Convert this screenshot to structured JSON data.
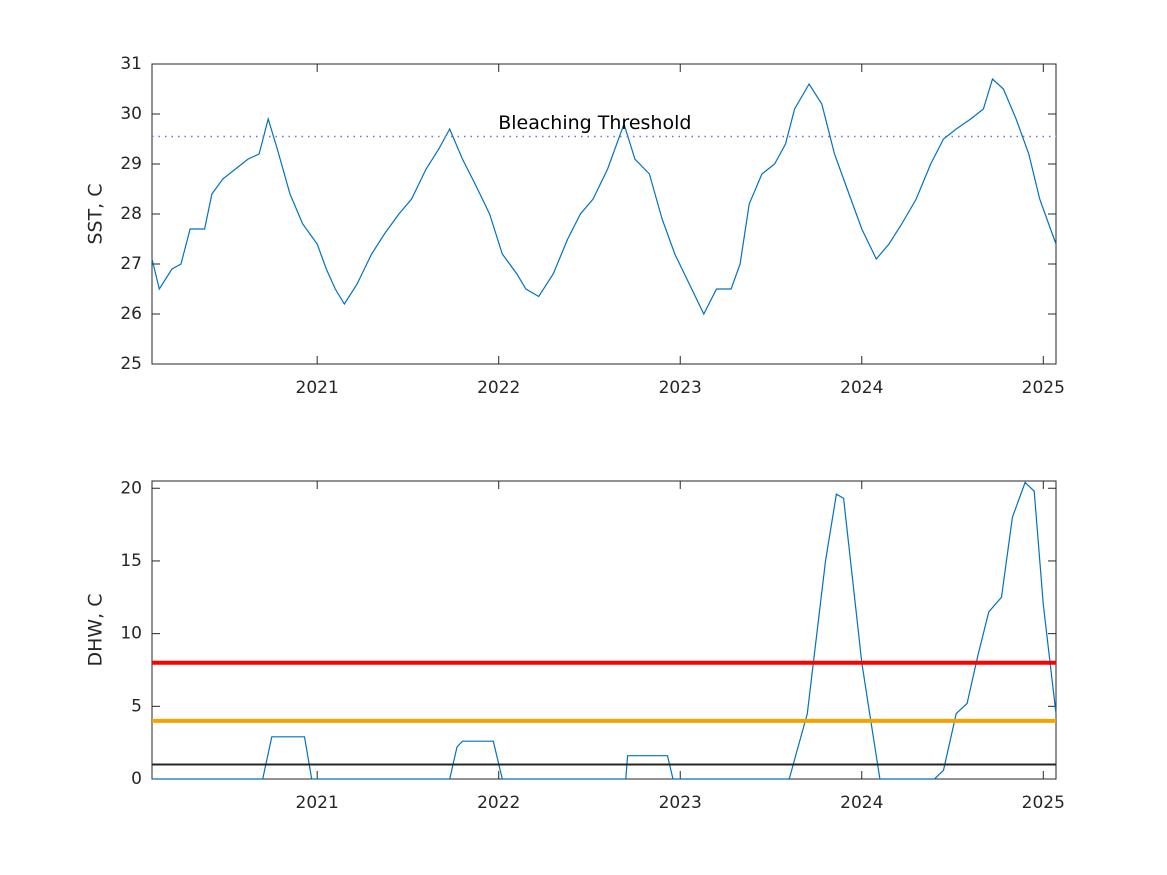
{
  "chart_data": [
    {
      "type": "line",
      "ylabel": "SST, C",
      "color": "#0072bd",
      "xlim": [
        2020.09,
        2025.07
      ],
      "xticks": [
        2021,
        2022,
        2023,
        2024,
        2025
      ],
      "ylim": [
        25,
        31
      ],
      "yticks": [
        25,
        26,
        27,
        28,
        29,
        30,
        31
      ],
      "threshold": {
        "value": 29.55,
        "label": "Bleaching Threshold",
        "color": "#7070d8"
      },
      "x": [
        2020.09,
        2020.13,
        2020.2,
        2020.25,
        2020.3,
        2020.38,
        2020.42,
        2020.48,
        2020.55,
        2020.62,
        2020.68,
        2020.73,
        2020.78,
        2020.85,
        2020.92,
        2021.0,
        2021.05,
        2021.1,
        2021.15,
        2021.22,
        2021.3,
        2021.37,
        2021.45,
        2021.52,
        2021.6,
        2021.67,
        2021.73,
        2021.8,
        2021.87,
        2021.95,
        2022.02,
        2022.1,
        2022.15,
        2022.22,
        2022.3,
        2022.38,
        2022.45,
        2022.52,
        2022.6,
        2022.69,
        2022.75,
        2022.83,
        2022.9,
        2022.97,
        2023.05,
        2023.13,
        2023.2,
        2023.28,
        2023.33,
        2023.38,
        2023.45,
        2023.52,
        2023.58,
        2023.63,
        2023.71,
        2023.78,
        2023.85,
        2023.92,
        2024.0,
        2024.08,
        2024.15,
        2024.22,
        2024.3,
        2024.38,
        2024.45,
        2024.52,
        2024.6,
        2024.67,
        2024.72,
        2024.78,
        2024.85,
        2024.92,
        2024.98,
        2025.03,
        2025.07
      ],
      "values": [
        27.1,
        26.5,
        26.9,
        27.0,
        27.7,
        27.7,
        28.4,
        28.7,
        28.9,
        29.1,
        29.2,
        29.9,
        29.3,
        28.4,
        27.8,
        27.4,
        26.9,
        26.5,
        26.2,
        26.6,
        27.2,
        27.6,
        28.0,
        28.3,
        28.9,
        29.3,
        29.7,
        29.1,
        28.6,
        28.0,
        27.2,
        26.8,
        26.5,
        26.35,
        26.8,
        27.5,
        28.0,
        28.3,
        28.9,
        29.8,
        29.1,
        28.8,
        27.9,
        27.2,
        26.6,
        26.0,
        26.5,
        26.5,
        27.0,
        28.2,
        28.8,
        29.0,
        29.4,
        30.1,
        30.6,
        30.2,
        29.2,
        28.5,
        27.7,
        27.1,
        27.4,
        27.8,
        28.3,
        29.0,
        29.5,
        29.7,
        29.9,
        30.1,
        30.7,
        30.5,
        29.9,
        29.2,
        28.3,
        27.8,
        27.4
      ]
    },
    {
      "type": "line",
      "ylabel": "DHW, C",
      "color": "#0072bd",
      "xlim": [
        2020.09,
        2025.07
      ],
      "xticks": [
        2021,
        2022,
        2023,
        2024,
        2025
      ],
      "ylim": [
        0,
        20.5
      ],
      "yticks": [
        0,
        5,
        10,
        15,
        20
      ],
      "hlines": [
        {
          "value": 8,
          "color": "#ff0000"
        },
        {
          "value": 4,
          "color": "#f5a300"
        },
        {
          "value": 1,
          "color": "#262626"
        }
      ],
      "x": [
        2020.09,
        2020.7,
        2020.75,
        2020.93,
        2020.97,
        2021.73,
        2021.77,
        2021.8,
        2021.97,
        2022.02,
        2022.7,
        2022.71,
        2022.93,
        2022.96,
        2023.6,
        2023.7,
        2023.8,
        2023.86,
        2023.9,
        2024.0,
        2024.05,
        2024.1,
        2024.4,
        2024.45,
        2024.52,
        2024.58,
        2024.64,
        2024.7,
        2024.77,
        2024.83,
        2024.9,
        2024.95,
        2025.0,
        2025.07
      ],
      "values": [
        0,
        0,
        2.9,
        2.9,
        0,
        0,
        2.2,
        2.6,
        2.6,
        0,
        0,
        1.6,
        1.6,
        0,
        0,
        4.5,
        15,
        19.6,
        19.3,
        8,
        4,
        0,
        0,
        0.6,
        4.5,
        5.2,
        8.5,
        11.5,
        12.5,
        18,
        20.4,
        19.8,
        12,
        4.5
      ]
    }
  ]
}
